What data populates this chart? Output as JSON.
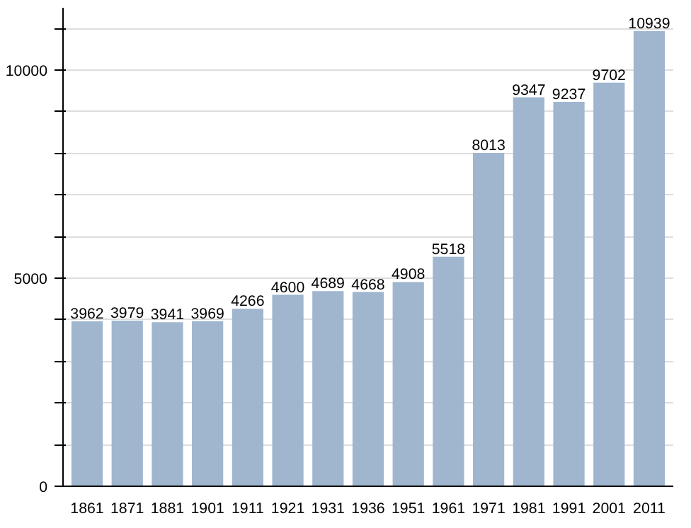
{
  "chart_data": {
    "type": "bar",
    "categories": [
      "1861",
      "1871",
      "1881",
      "1901",
      "1911",
      "1921",
      "1931",
      "1936",
      "1951",
      "1961",
      "1971",
      "1981",
      "1991",
      "2001",
      "2011"
    ],
    "values": [
      3962,
      3979,
      3941,
      3969,
      4266,
      4600,
      4689,
      4668,
      4908,
      5518,
      8013,
      9347,
      9237,
      9702,
      10939
    ],
    "color": "#a0b6cf",
    "data_labels": true,
    "grid": "y",
    "ylim": [
      0,
      11500
    ],
    "yticks": [
      0,
      {
        "value": 1000,
        "label": null
      },
      {
        "value": 2000,
        "label": null
      },
      {
        "value": 3000,
        "label": null
      },
      {
        "value": 4000,
        "label": null
      },
      5000,
      {
        "value": 6000,
        "label": null
      },
      {
        "value": 7000,
        "label": null
      },
      {
        "value": 8000,
        "label": null
      },
      {
        "value": 9000,
        "label": null
      },
      10000,
      {
        "value": 11000,
        "label": null
      }
    ]
  }
}
